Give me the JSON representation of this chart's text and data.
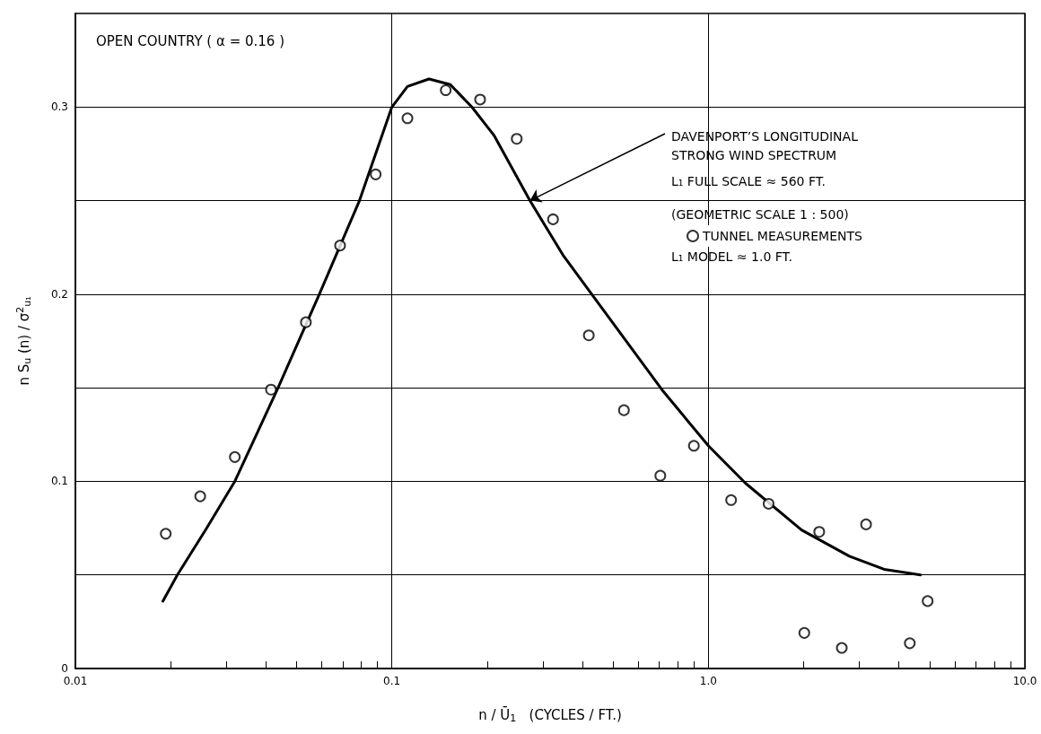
{
  "chart_data": {
    "type": "scatter",
    "title": "OPEN COUNTRY ( α = 0.16 )",
    "xlabel": "n / Ū$_{1}$   (CYCLES / FT.)",
    "ylabel": "n S$_{u}$ (n) / σ$^{2}$$_{u₁}$",
    "log": "x",
    "grid": true,
    "legend": "top right",
    "xlim": [
      0.01,
      10
    ],
    "ylim": [
      0,
      0.35
    ],
    "xticks": [
      0.01,
      {
        "value": 0.02,
        "label": null
      },
      {
        "value": 0.03,
        "label": null
      },
      {
        "value": 0.04,
        "label": null
      },
      {
        "value": 0.05,
        "label": null
      },
      {
        "value": 0.06,
        "label": null
      },
      {
        "value": 0.07,
        "label": null
      },
      {
        "value": 0.08,
        "label": null
      },
      {
        "value": 0.09,
        "label": null
      },
      0.1,
      {
        "value": 0.2,
        "label": null
      },
      {
        "value": 0.3,
        "label": null
      },
      {
        "value": 0.4,
        "label": null
      },
      {
        "value": 0.5,
        "label": null
      },
      {
        "value": 0.6,
        "label": null
      },
      {
        "value": 0.7,
        "label": null
      },
      {
        "value": 0.8,
        "label": null
      },
      {
        "value": 0.9,
        "label": null
      },
      {
        "value": 1,
        "label": "1.0"
      },
      {
        "value": 2,
        "label": null
      },
      {
        "value": 3,
        "label": null
      },
      {
        "value": 4,
        "label": null
      },
      {
        "value": 5,
        "label": null
      },
      {
        "value": 6,
        "label": null
      },
      {
        "value": 7,
        "label": null
      },
      {
        "value": 8,
        "label": null
      },
      {
        "value": 9,
        "label": null
      },
      {
        "value": 10,
        "label": "10.0"
      }
    ],
    "yticks": [
      0,
      {
        "value": 0.05,
        "label": null
      },
      0.1,
      {
        "value": 0.15,
        "label": null
      },
      0.2,
      {
        "value": 0.25,
        "label": null
      },
      0.3
    ],
    "series": [
      {
        "type": "line",
        "color": "#000000",
        "marker": "none",
        "line_style": "solid",
        "x": [
          0.0189,
          0.021,
          0.026,
          0.0319,
          0.0437,
          0.059,
          0.079,
          0.1,
          0.112,
          0.131,
          0.153,
          0.179,
          0.21,
          0.273,
          0.347,
          0.428,
          0.713,
          1.0,
          1.31,
          1.97,
          2.79,
          3.59,
          4.68
        ],
        "values": [
          0.036,
          0.05,
          0.075,
          0.1,
          0.15,
          0.2,
          0.25,
          0.3,
          0.311,
          0.315,
          0.312,
          0.3,
          0.285,
          0.25,
          0.221,
          0.2,
          0.149,
          0.119,
          0.099,
          0.074,
          0.06,
          0.053,
          0.05
        ]
      },
      {
        "type": "scatter",
        "name": "TUNNEL MEASUREMENTS",
        "color": "#000000",
        "marker": "circle",
        "x": [
          0.0193,
          0.0248,
          0.0319,
          0.0415,
          0.0535,
          0.0686,
          0.0889,
          0.112,
          0.148,
          0.19,
          0.248,
          0.323,
          0.419,
          0.541,
          0.705,
          0.9,
          1.18,
          1.55,
          2.01,
          2.24,
          2.64,
          3.15,
          4.33,
          4.93
        ],
        "values": [
          0.072,
          0.092,
          0.113,
          0.149,
          0.185,
          0.226,
          0.264,
          0.294,
          0.309,
          0.304,
          0.283,
          0.24,
          0.178,
          0.138,
          0.103,
          0.119,
          0.09,
          0.088,
          0.019,
          0.073,
          0.011,
          0.077,
          0.0135,
          0.036
        ]
      }
    ],
    "annotations": [
      {
        "text": "DAVENPORT’S LONGITUDINAL STRONG WIND SPECTRUM",
        "x": 0.273,
        "y": 0.25
      },
      "L₁ FULL SCALE ≈ 560 FT.",
      "(GEOMETRIC SCALE 1 : 500)",
      "L₁ MODEL ≈ 1.0 FT."
    ]
  }
}
